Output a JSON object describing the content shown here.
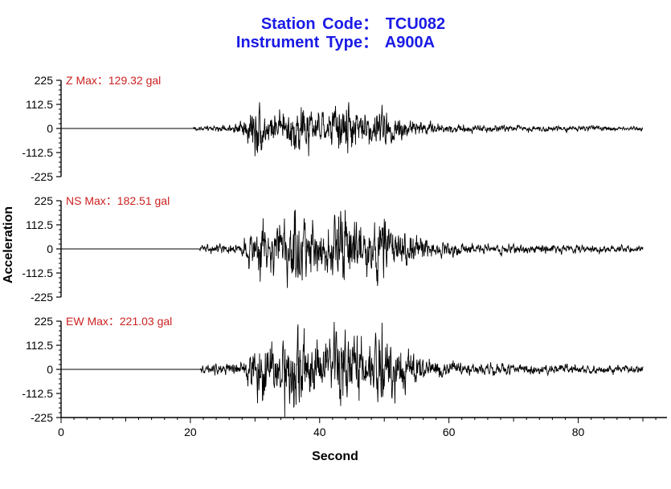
{
  "header": {
    "station_line": "Station Code： TCU082",
    "instrument_line": "Instrument Type： A900A"
  },
  "chart_data": {
    "type": "line",
    "xlabel": "Second",
    "ylabel": "Acceleration",
    "xlim": [
      0,
      90
    ],
    "x_ticks": [
      "0",
      "20",
      "40",
      "60",
      "80"
    ],
    "ylim": [
      -225,
      225
    ],
    "y_ticks": [
      "225",
      "112.5",
      "0",
      "-112.5",
      "-225"
    ],
    "grid": false,
    "panels": [
      {
        "name": "Z",
        "max_label": "Z  Max：129.32 gal",
        "max_value": 129.32,
        "onset_s": 20.5,
        "peak_time_s": 38.3,
        "color": "#000000"
      },
      {
        "name": "NS",
        "max_label": "NS  Max：182.51 gal",
        "max_value": 182.51,
        "onset_s": 21.5,
        "peak_time_s": 35.0,
        "color": "#000000"
      },
      {
        "name": "EW",
        "max_label": "EW  Max：221.03 gal",
        "max_value": 221.03,
        "onset_s": 21.5,
        "peak_time_s": 34.6,
        "color": "#000000"
      }
    ]
  }
}
